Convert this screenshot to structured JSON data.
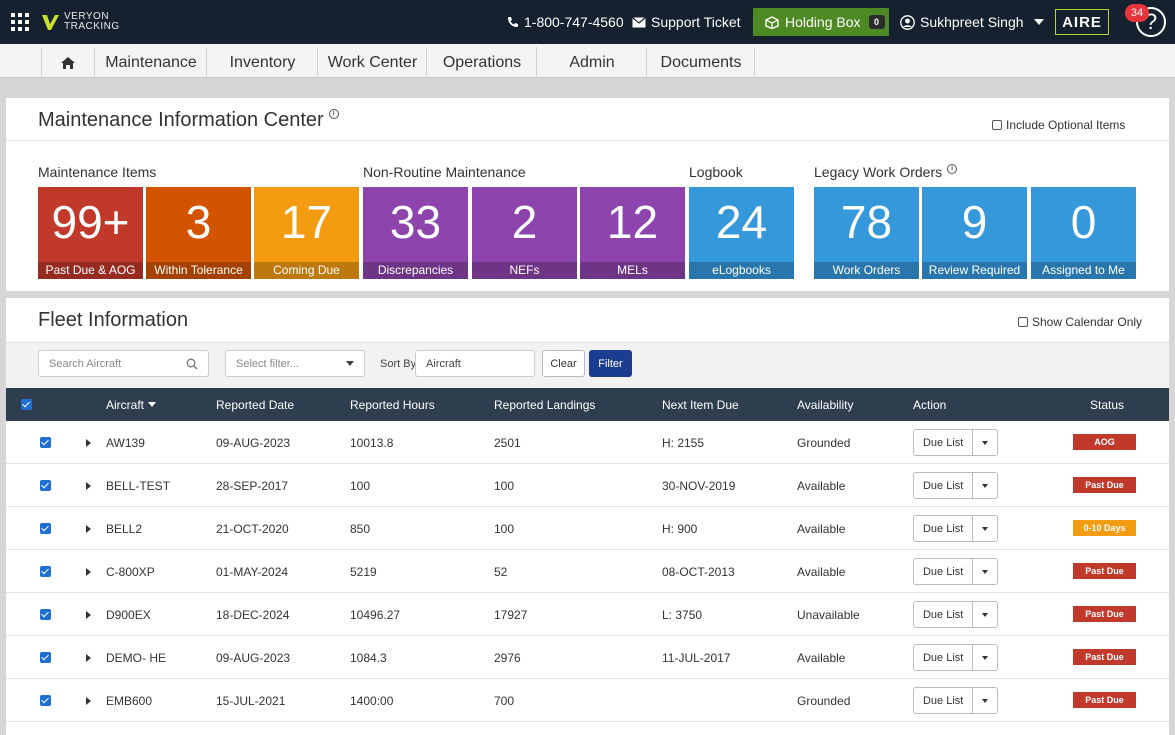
{
  "topbar": {
    "brand_line1": "VERYON",
    "brand_line2": "TRACKING",
    "phone": "1-800-747-4560",
    "support": "Support Ticket",
    "holding_box": "Holding Box",
    "holding_count": "0",
    "user": "Sukhpreet Singh",
    "aire": "AIRE",
    "notifications": "34",
    "help": "?"
  },
  "nav": [
    "Maintenance",
    "Inventory",
    "Work Center",
    "Operations",
    "Admin",
    "Documents"
  ],
  "mic": {
    "title": "Maintenance Information Center",
    "include_optional": "Include Optional Items",
    "sections": [
      "Maintenance Items",
      "Non-Routine Maintenance",
      "Logbook",
      "Legacy Work Orders"
    ],
    "tiles": [
      {
        "value": "99+",
        "label": "Past Due & AOG",
        "color": "#c0392b"
      },
      {
        "value": "3",
        "label": "Within Tolerance",
        "color": "#d35400"
      },
      {
        "value": "17",
        "label": "Coming Due",
        "color": "#f39c12"
      },
      {
        "value": "33",
        "label": "Discrepancies",
        "color": "#8e44ad"
      },
      {
        "value": "2",
        "label": "NEFs",
        "color": "#8e44ad"
      },
      {
        "value": "12",
        "label": "MELs",
        "color": "#8e44ad"
      },
      {
        "value": "24",
        "label": "eLogbooks",
        "color": "#3498db"
      },
      {
        "value": "78",
        "label": "Work Orders",
        "color": "#3498db"
      },
      {
        "value": "9",
        "label": "Review Required",
        "color": "#3498db"
      },
      {
        "value": "0",
        "label": "Assigned to Me",
        "color": "#3498db"
      }
    ]
  },
  "fleet": {
    "title": "Fleet Information",
    "show_calendar": "Show Calendar Only",
    "search_placeholder": "Search Aircraft",
    "filter_placeholder": "Select filter...",
    "sort_by_label": "Sort By",
    "sort_value": "Aircraft",
    "clear": "Clear",
    "filter": "Filter",
    "columns": [
      "Aircraft",
      "Reported Date",
      "Reported Hours",
      "Reported Landings",
      "Next Item Due",
      "Availability",
      "Action",
      "Status"
    ],
    "rows": [
      {
        "aircraft": "AW139",
        "date": "09-AUG-2023",
        "hours": "10013.8",
        "landings": "2501",
        "next_due": "H: 2155",
        "availability": "Grounded",
        "action": "Due List",
        "status": "AOG",
        "status_color": "#c0392b"
      },
      {
        "aircraft": "BELL-TEST",
        "date": "28-SEP-2017",
        "hours": "100",
        "landings": "100",
        "next_due": "30-NOV-2019",
        "availability": "Available",
        "action": "Due List",
        "status": "Past Due",
        "status_color": "#c0392b"
      },
      {
        "aircraft": "BELL2",
        "date": "21-OCT-2020",
        "hours": "850",
        "landings": "100",
        "next_due": "H: 900",
        "availability": "Available",
        "action": "Due List",
        "status": "0-10 Days",
        "status_color": "#f39c12"
      },
      {
        "aircraft": "C-800XP",
        "date": "01-MAY-2024",
        "hours": "5219",
        "landings": "52",
        "next_due": "08-OCT-2013",
        "availability": "Available",
        "action": "Due List",
        "status": "Past Due",
        "status_color": "#c0392b"
      },
      {
        "aircraft": "D900EX",
        "date": "18-DEC-2024",
        "hours": "10496.27",
        "landings": "17927",
        "next_due": "L: 3750",
        "availability": "Unavailable",
        "action": "Due List",
        "status": "Past Due",
        "status_color": "#c0392b"
      },
      {
        "aircraft": "DEMO- HE",
        "date": "09-AUG-2023",
        "hours": "1084.3",
        "landings": "2976",
        "next_due": "11-JUL-2017",
        "availability": "Available",
        "action": "Due List",
        "status": "Past Due",
        "status_color": "#c0392b"
      },
      {
        "aircraft": "EMB600",
        "date": "15-JUL-2021",
        "hours": "1400:00",
        "landings": "700",
        "next_due": "",
        "availability": "Grounded",
        "action": "Due List",
        "status": "Past Due",
        "status_color": "#c0392b"
      }
    ]
  }
}
